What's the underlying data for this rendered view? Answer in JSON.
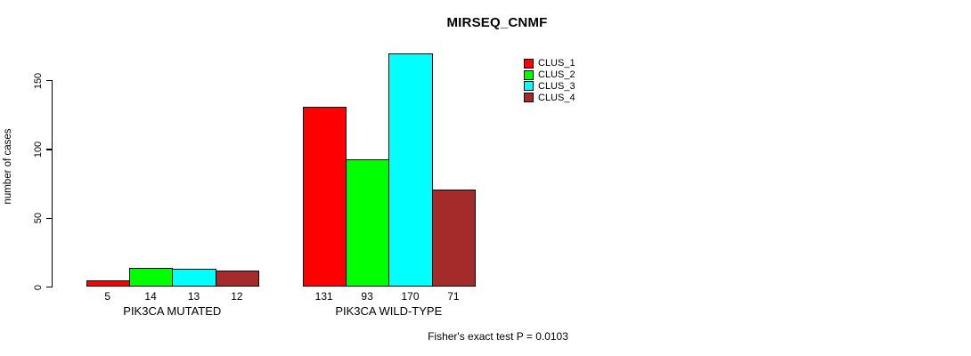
{
  "title": "MIRSEQ_CNMF",
  "footer": "Fisher's exact test P = 0.0103",
  "chart_data": {
    "type": "bar",
    "title": "MIRSEQ_CNMF",
    "xlabel": "",
    "ylabel": "number of cases",
    "categories": [
      "PIK3CA MUTATED",
      "PIK3CA WILD-TYPE"
    ],
    "series": [
      {
        "name": "CLUS_1",
        "color": "#ff0000",
        "values": [
          5,
          131
        ]
      },
      {
        "name": "CLUS_2",
        "color": "#00ff00",
        "values": [
          14,
          93
        ]
      },
      {
        "name": "CLUS_3",
        "color": "#00ffff",
        "values": [
          13,
          170
        ]
      },
      {
        "name": "CLUS_4",
        "color": "#a52a2a",
        "values": [
          12,
          71
        ]
      }
    ],
    "yticks": [
      0,
      50,
      100,
      150
    ],
    "ylim": [
      0,
      170
    ],
    "grid": false,
    "bar_value_labels": true,
    "legend_position": "top-right",
    "annotation": "Fisher's exact test P = 0.0103"
  }
}
